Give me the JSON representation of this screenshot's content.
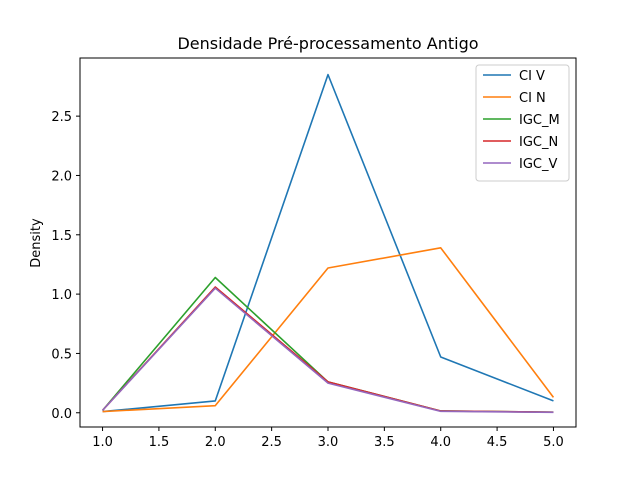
{
  "chart_data": {
    "type": "line",
    "title": "Densidade Pré-processamento Antigo",
    "xlabel": "",
    "ylabel": "Density",
    "x": [
      1.0,
      2.0,
      3.0,
      4.0,
      5.0
    ],
    "xlim": [
      0.8,
      5.2
    ],
    "ylim": [
      -0.12,
      2.99
    ],
    "xticks": [
      1.0,
      1.5,
      2.0,
      2.5,
      3.0,
      3.5,
      4.0,
      4.5,
      5.0
    ],
    "xtick_labels": [
      "1.0",
      "1.5",
      "2.0",
      "2.5",
      "3.0",
      "3.5",
      "4.0",
      "4.5",
      "5.0"
    ],
    "yticks": [
      0.0,
      0.5,
      1.0,
      1.5,
      2.0,
      2.5
    ],
    "ytick_labels": [
      "0.0",
      "0.5",
      "1.0",
      "1.5",
      "2.0",
      "2.5"
    ],
    "grid": false,
    "legend_position": "top-right",
    "series": [
      {
        "name": "CI V",
        "color": "#1f77b4",
        "values": [
          0.01,
          0.1,
          2.85,
          0.47,
          0.1
        ]
      },
      {
        "name": "CI N",
        "color": "#ff7f0e",
        "values": [
          0.01,
          0.06,
          1.22,
          1.39,
          0.13
        ]
      },
      {
        "name": "IGC_M",
        "color": "#2ca02c",
        "values": [
          0.02,
          1.14,
          0.26,
          0.015,
          0.005
        ]
      },
      {
        "name": "IGC_N",
        "color": "#d62728",
        "values": [
          0.02,
          1.06,
          0.26,
          0.015,
          0.005
        ]
      },
      {
        "name": "IGC_V",
        "color": "#9467bd",
        "values": [
          0.02,
          1.05,
          0.25,
          0.012,
          0.004
        ]
      }
    ]
  }
}
